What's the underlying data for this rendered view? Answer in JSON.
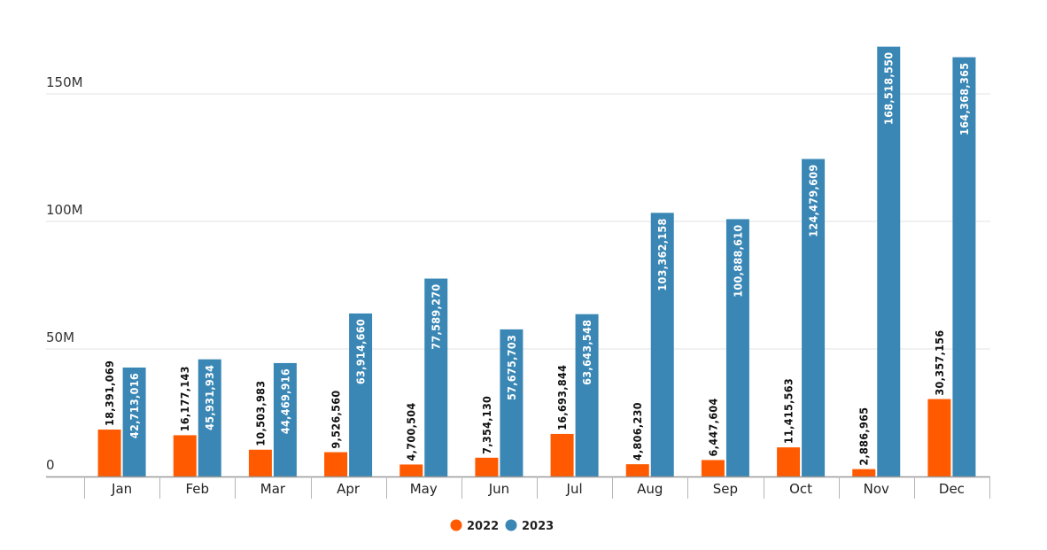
{
  "chart_data": {
    "type": "bar",
    "title": "",
    "xlabel": "",
    "ylabel": "",
    "categories": [
      "Jan",
      "Feb",
      "Mar",
      "Apr",
      "May",
      "Jun",
      "Jul",
      "Aug",
      "Sep",
      "Oct",
      "Nov",
      "Dec"
    ],
    "series": [
      {
        "name": "2022",
        "color": "#ff5a00",
        "values": [
          18391069,
          16177143,
          10503983,
          9526560,
          4700504,
          7354130,
          16693844,
          4806230,
          6447604,
          11415563,
          2886965,
          30357156
        ],
        "labels": [
          "18,391,069",
          "16,177,143",
          "10,503,983",
          "9,526,560",
          "4,700,504",
          "7,354,130",
          "16,693,844",
          "4,806,230",
          "6,447,604",
          "11,415,563",
          "2,886,965",
          "30,357,156"
        ]
      },
      {
        "name": "2023",
        "color": "#3a87b5",
        "values": [
          42713016,
          45931934,
          44469916,
          63914660,
          77589270,
          57675703,
          63643548,
          103362158,
          100888610,
          124479609,
          168518550,
          164368365
        ],
        "labels": [
          "42,713,016",
          "45,931,934",
          "44,469,916",
          "63,914,660",
          "77,589,270",
          "57,675,703",
          "63,643,548",
          "103,362,158",
          "100,888,610",
          "124,479,609",
          "168,518,550",
          "164,368,365"
        ]
      }
    ],
    "ylim": [
      0,
      175000000
    ],
    "yticks": [
      0,
      50000000,
      100000000,
      150000000
    ],
    "ytick_labels": [
      "0",
      "50M",
      "100M",
      "150M"
    ],
    "grid": true,
    "legend_position": "bottom-center"
  }
}
